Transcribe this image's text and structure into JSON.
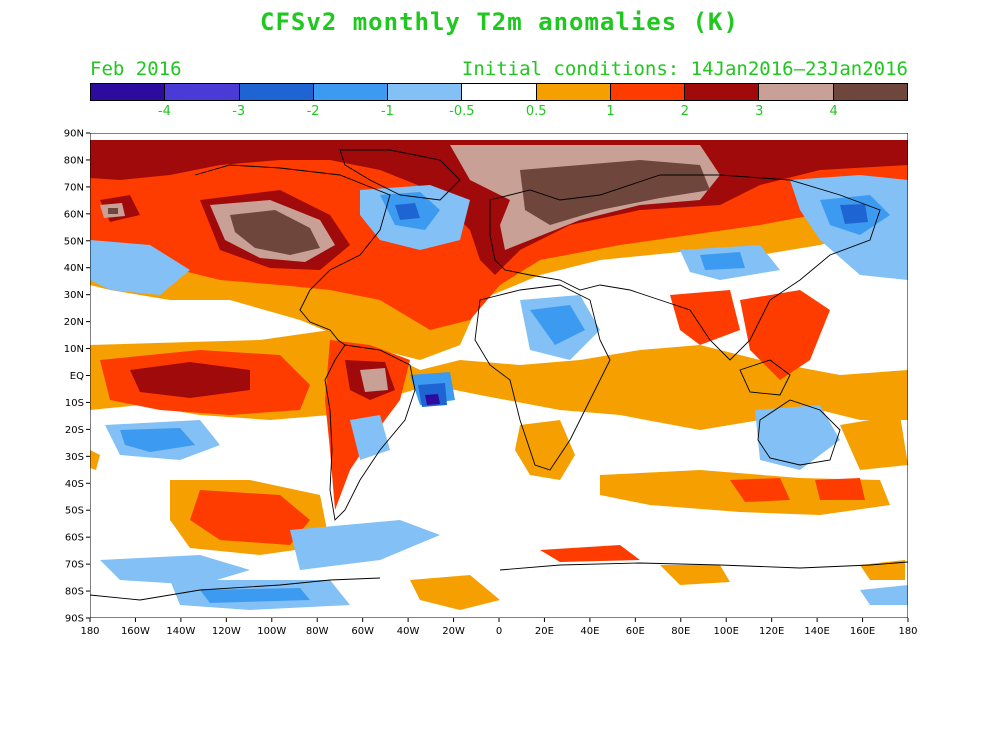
{
  "title": "CFSv2 monthly T2m anomalies (K)",
  "valid_month": "Feb 2016",
  "initial_conditions": "Initial conditions: 14Jan2016–23Jan2016",
  "colors": {
    "text": "#1ec81e"
  },
  "legend": {
    "colors": [
      "#2d0b9e",
      "#4b3bd6",
      "#1e64d2",
      "#3c9bf0",
      "#82c0f5",
      "#ffffff",
      "#f5a000",
      "#ff3c00",
      "#a00a0a",
      "#c8a096",
      "#6e463c"
    ],
    "labels": [
      "-4",
      "-3",
      "-2",
      "-1",
      "-0.5",
      "0.5",
      "1",
      "2",
      "3",
      "4"
    ]
  },
  "axes": {
    "lat_labels": [
      "90N",
      "80N",
      "70N",
      "60N",
      "50N",
      "40N",
      "30N",
      "20N",
      "10N",
      "EQ",
      "10S",
      "20S",
      "30S",
      "40S",
      "50S",
      "60S",
      "70S",
      "80S",
      "90S"
    ],
    "lon_labels": [
      "180",
      "160W",
      "140W",
      "120W",
      "100W",
      "80W",
      "60W",
      "40W",
      "20W",
      "0",
      "20E",
      "40E",
      "60E",
      "80E",
      "100E",
      "120E",
      "140E",
      "160E",
      "180"
    ]
  }
}
